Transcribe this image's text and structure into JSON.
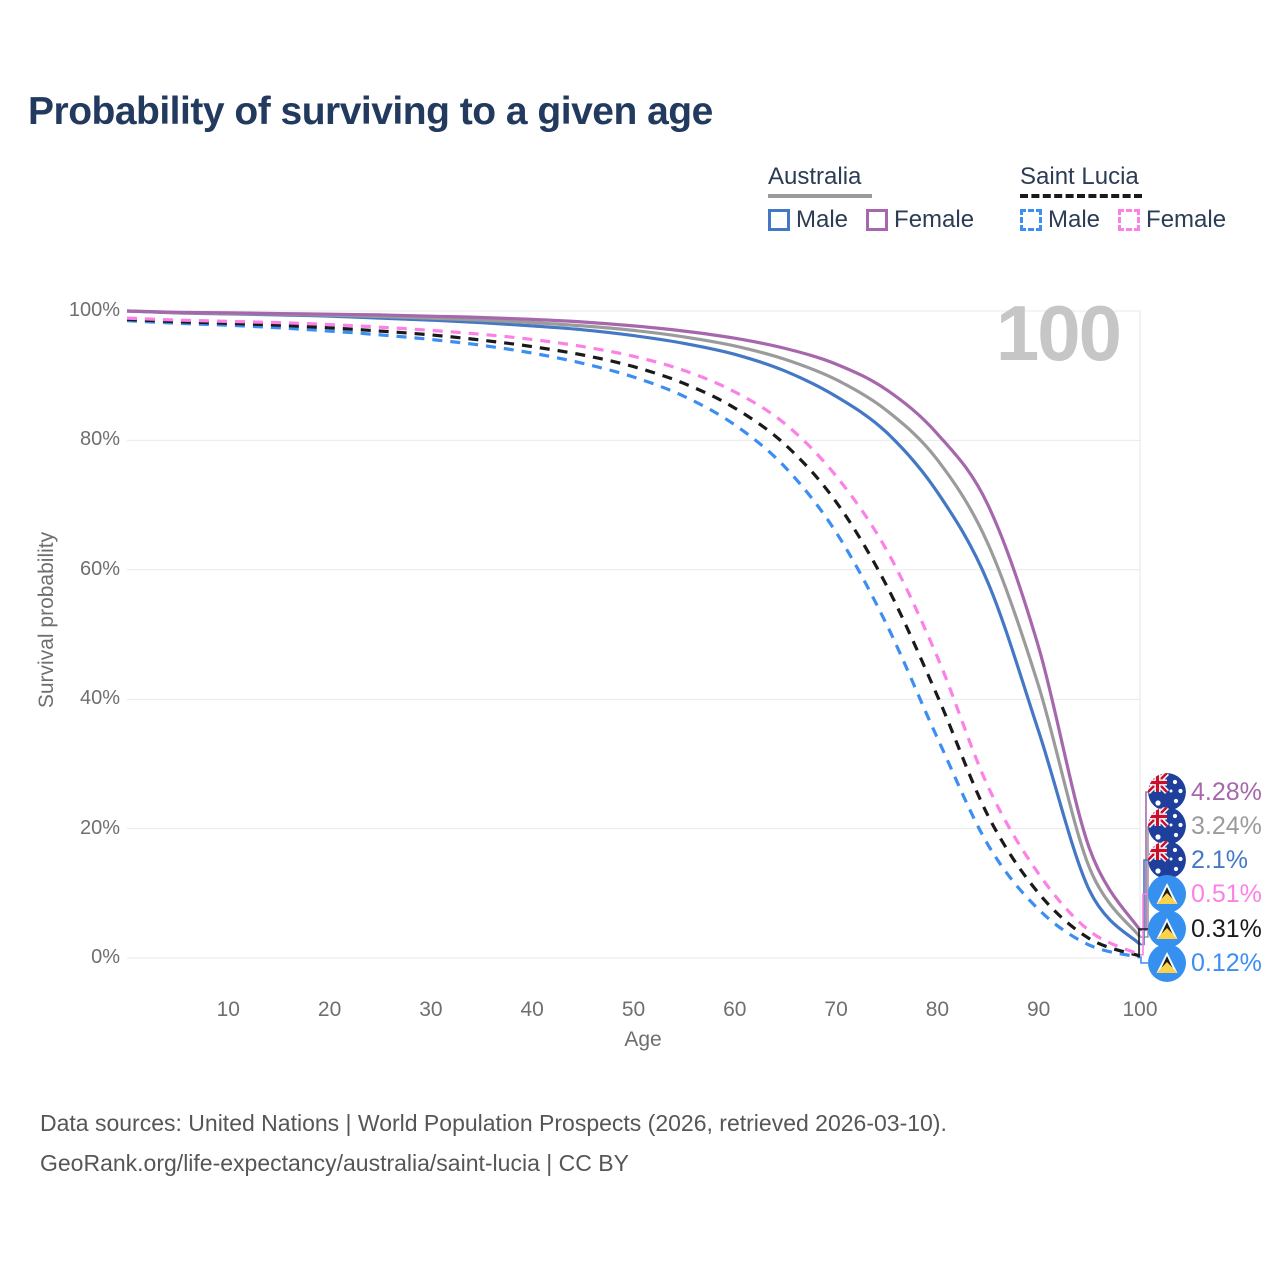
{
  "title": "Probability of surviving to a given age",
  "watermark_age": "100",
  "legend": {
    "groups": [
      {
        "label": "Australia",
        "line_style": "solid",
        "underline_color": "#9b9b9b",
        "items": [
          {
            "label": "Male",
            "color": "#4478c4"
          },
          {
            "label": "Female",
            "color": "#a667ad"
          }
        ]
      },
      {
        "label": "Saint Lucia",
        "line_style": "dashed",
        "underline_color": "#1a1a1a",
        "items": [
          {
            "label": "Male",
            "color": "#3d8ef2"
          },
          {
            "label": "Female",
            "color": "#fc81e6"
          }
        ]
      }
    ]
  },
  "axes": {
    "x": {
      "label": "Age",
      "ticks": [
        10,
        20,
        30,
        40,
        50,
        60,
        70,
        80,
        90,
        100
      ],
      "min": 0,
      "max": 100
    },
    "y": {
      "label": "Survival probability",
      "ticks": [
        {
          "value": 0,
          "label": "0%"
        },
        {
          "value": 20,
          "label": "20%"
        },
        {
          "value": 40,
          "label": "40%"
        },
        {
          "value": 60,
          "label": "60%"
        },
        {
          "value": 80,
          "label": "80%"
        },
        {
          "value": 100,
          "label": "100%"
        }
      ],
      "min": 0,
      "max": 100
    }
  },
  "chart_data": {
    "type": "line",
    "title": "Probability of surviving to a given age",
    "xlabel": "Age",
    "ylabel": "Survival probability",
    "xlim": [
      0,
      100
    ],
    "ylim": [
      0,
      100
    ],
    "grid": "horizontal",
    "x_ages": [
      0,
      5,
      10,
      15,
      20,
      25,
      30,
      35,
      40,
      45,
      50,
      55,
      60,
      65,
      70,
      75,
      80,
      85,
      90,
      95,
      100
    ],
    "series": [
      {
        "name": "Australia — Female",
        "country": "Australia",
        "sex": "Female",
        "line": "solid",
        "color": "#a667ad",
        "flag": "australia",
        "end_label": "4.28%",
        "values": [
          100,
          99.8,
          99.7,
          99.6,
          99.5,
          99.4,
          99.2,
          99.0,
          98.7,
          98.3,
          97.7,
          96.9,
          95.8,
          94.2,
          91.8,
          87.8,
          81.0,
          70.0,
          48.0,
          17.0,
          4.28
        ]
      },
      {
        "name": "Australia — Both sexes",
        "country": "Australia",
        "sex": "Both",
        "line": "solid",
        "color": "#9b9b9b",
        "flag": "australia",
        "end_label": "3.24%",
        "values": [
          100,
          99.75,
          99.6,
          99.5,
          99.35,
          99.15,
          98.9,
          98.6,
          98.2,
          97.7,
          97.0,
          96.0,
          94.6,
          92.5,
          89.4,
          84.6,
          77.0,
          64.0,
          42.0,
          14.0,
          3.24
        ]
      },
      {
        "name": "Australia — Male",
        "country": "Australia",
        "sex": "Male",
        "line": "solid",
        "color": "#4478c4",
        "flag": "australia",
        "end_label": "2.1%",
        "values": [
          100,
          99.7,
          99.55,
          99.4,
          99.2,
          98.9,
          98.6,
          98.2,
          97.7,
          97.1,
          96.2,
          95.0,
          93.3,
          90.7,
          86.8,
          81.2,
          72.0,
          58.0,
          35.0,
          10.5,
          2.1
        ]
      },
      {
        "name": "Saint Lucia — Female",
        "country": "Saint Lucia",
        "sex": "Female",
        "line": "dashed",
        "color": "#fc81e6",
        "flag": "saint-lucia",
        "end_label": "0.51%",
        "values": [
          98.9,
          98.6,
          98.4,
          98.2,
          97.9,
          97.5,
          97.0,
          96.4,
          95.6,
          94.5,
          93.0,
          90.8,
          87.5,
          82.5,
          74.5,
          63.0,
          46.5,
          26.5,
          13.0,
          4.2,
          0.51
        ]
      },
      {
        "name": "Saint Lucia — Both sexes",
        "country": "Saint Lucia",
        "sex": "Both",
        "line": "dashed",
        "color": "#1a1a1a",
        "flag": "saint-lucia",
        "end_label": "0.31%",
        "values": [
          98.7,
          98.35,
          98.1,
          97.8,
          97.4,
          96.9,
          96.3,
          95.5,
          94.5,
          93.2,
          91.4,
          88.8,
          85.0,
          79.3,
          70.5,
          57.5,
          40.5,
          22.0,
          10.0,
          3.0,
          0.31
        ]
      },
      {
        "name": "Saint Lucia — Male",
        "country": "Saint Lucia",
        "sex": "Male",
        "line": "dashed",
        "color": "#3d8ef2",
        "flag": "saint-lucia",
        "end_label": "0.12%",
        "values": [
          98.5,
          98.1,
          97.8,
          97.4,
          96.9,
          96.3,
          95.6,
          94.7,
          93.5,
          91.9,
          89.8,
          86.8,
          82.4,
          75.8,
          65.8,
          51.5,
          34.0,
          17.5,
          7.5,
          2.0,
          0.12
        ]
      }
    ]
  },
  "footer": {
    "line1": "Data sources: United Nations | World Population Prospects (2026, retrieved 2026-03-10).",
    "line2": "GeoRank.org/life-expectancy/australia/saint-lucia | CC BY"
  }
}
